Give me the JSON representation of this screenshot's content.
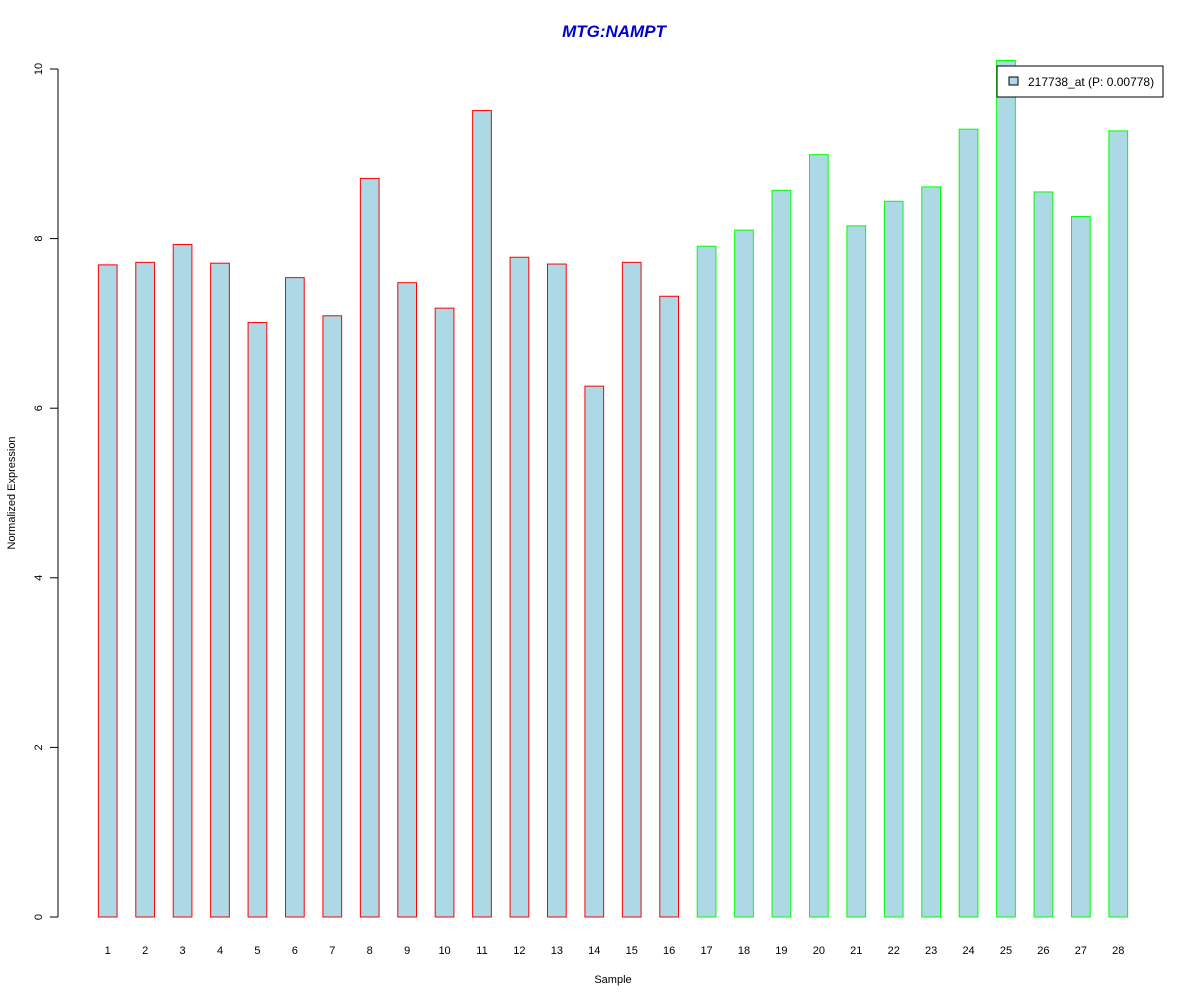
{
  "chart_data": {
    "type": "bar",
    "title": "MTG:NAMPT",
    "xlabel": "Sample",
    "ylabel": "Normalized Expression",
    "ylim": [
      0,
      10
    ],
    "yticks": [
      "0",
      "2",
      "4",
      "6",
      "8",
      "10"
    ],
    "categories": [
      "1",
      "2",
      "3",
      "4",
      "5",
      "6",
      "7",
      "8",
      "9",
      "10",
      "11",
      "12",
      "13",
      "14",
      "15",
      "16",
      "17",
      "18",
      "19",
      "20",
      "21",
      "22",
      "23",
      "24",
      "25",
      "26",
      "27",
      "28"
    ],
    "series": [
      {
        "name": "217738_at (P: 0.00778)",
        "values": [
          7.69,
          7.72,
          7.93,
          7.71,
          7.01,
          7.54,
          7.09,
          8.71,
          7.48,
          7.18,
          9.51,
          7.78,
          7.7,
          6.26,
          7.72,
          7.32,
          7.91,
          8.1,
          8.57,
          8.99,
          8.15,
          8.44,
          8.61,
          9.29,
          10.1,
          8.55,
          8.26,
          9.27
        ]
      }
    ],
    "bar_fill": "#add8e6",
    "group_colors": [
      "#ff0000",
      "#00ff00"
    ],
    "group_of_bar": [
      0,
      0,
      0,
      0,
      0,
      0,
      0,
      0,
      0,
      0,
      0,
      0,
      0,
      0,
      0,
      0,
      1,
      1,
      1,
      1,
      1,
      1,
      1,
      1,
      1,
      1,
      1,
      1
    ],
    "title_color": "#0000cd",
    "legend": {
      "label": "217738_at (P: 0.00778)",
      "position": "top-right"
    },
    "grid": false
  }
}
